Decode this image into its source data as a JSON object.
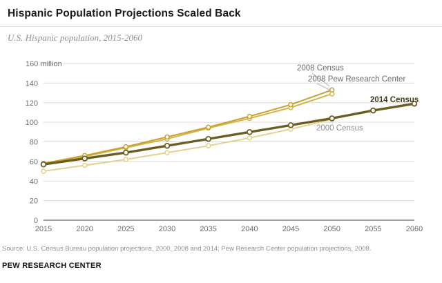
{
  "header": {
    "title": "Hispanic Population Projections Scaled Back",
    "subtitle": "U.S. Hispanic population, 2015-2060"
  },
  "chart_data": {
    "type": "line",
    "title": "Hispanic Population Projections Scaled Back",
    "subtitle": "U.S. Hispanic population, 2015-2060",
    "x": [
      2015,
      2020,
      2025,
      2030,
      2035,
      2040,
      2045,
      2050,
      2055,
      2060
    ],
    "xlim": [
      2015,
      2060
    ],
    "ylim": [
      0,
      160
    ],
    "ytick_step": 20,
    "ytick_top_label": "160 million",
    "grid": true,
    "grid_color": "#d9d9d9",
    "baseline_color": "#404040",
    "axis_color": "#6e6e6e",
    "legend_position": "annotations-on-chart",
    "series": [
      {
        "name": "2000 Census",
        "color": "#e4d18d",
        "width": 2,
        "x": [
          2015,
          2020,
          2025,
          2030,
          2035,
          2040,
          2045,
          2050
        ],
        "values": [
          50,
          56,
          62,
          69,
          76,
          84,
          93,
          103
        ]
      },
      {
        "name": "2008 Pew Research Center",
        "color": "#d3b44a",
        "width": 2,
        "x": [
          2015,
          2020,
          2025,
          2030,
          2035,
          2040,
          2045,
          2050
        ],
        "values": [
          58,
          65,
          74,
          83,
          94,
          104,
          115,
          129
        ]
      },
      {
        "name": "2008 Census",
        "color": "#c9a22b",
        "width": 2,
        "x": [
          2015,
          2020,
          2025,
          2030,
          2035,
          2040,
          2045,
          2050
        ],
        "values": [
          58,
          66,
          75,
          85,
          95,
          106,
          118,
          133
        ]
      },
      {
        "name": "2014 Census",
        "color": "#6b5d20",
        "width": 3.4,
        "x": [
          2015,
          2020,
          2025,
          2030,
          2035,
          2040,
          2045,
          2050,
          2055,
          2060
        ],
        "values": [
          57,
          63,
          69,
          76,
          83,
          90,
          97,
          104,
          112,
          119
        ]
      }
    ],
    "annotations": [
      {
        "text": "2008 Census",
        "x": 430,
        "y": 38,
        "color": "#6d6d6d",
        "bold": false,
        "leader": [
          452,
          42,
          477,
          61
        ]
      },
      {
        "text": "2008 Pew Research Center",
        "x": 446,
        "y": 54,
        "color": "#6d6d6d",
        "bold": false,
        "leader": [
          459,
          57,
          479,
          67
        ]
      },
      {
        "text": "2014 Census",
        "x": 536,
        "y": 84,
        "color": "#433a16",
        "bold": true
      },
      {
        "text": "2000 Census",
        "x": 458,
        "y": 125,
        "color": "#8f8f8f",
        "bold": false
      }
    ]
  },
  "footer": {
    "source": "Source: U.S. Census Bureau population projections, 2000, 2008 and 2014; Pew Research Center population projections, 2008.",
    "brand": "PEW RESEARCH CENTER"
  }
}
